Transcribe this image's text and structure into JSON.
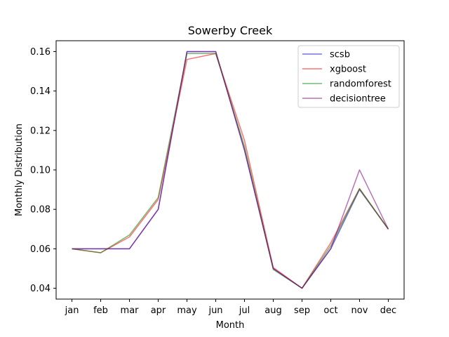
{
  "chart_data": {
    "type": "line",
    "title": "Sowerby Creek",
    "xlabel": "Month",
    "ylabel": "Monthly Distribution",
    "categories": [
      "jan",
      "feb",
      "mar",
      "apr",
      "may",
      "jun",
      "jul",
      "aug",
      "sep",
      "oct",
      "nov",
      "dec"
    ],
    "ylim": [
      0.0345,
      0.1655
    ],
    "yticks": [
      "0.04",
      "0.06",
      "0.08",
      "0.10",
      "0.12",
      "0.14",
      "0.16"
    ],
    "legend_position": "top-right",
    "grid": false,
    "series": [
      {
        "name": "scsb",
        "color": "#0000cc",
        "values": [
          0.06,
          0.06,
          0.06,
          0.08,
          0.16,
          0.16,
          0.11,
          0.05,
          0.04,
          0.06,
          0.09,
          0.07
        ]
      },
      {
        "name": "xgboost",
        "color": "#ff0000",
        "values": [
          0.06,
          0.058,
          0.066,
          0.085,
          0.156,
          0.159,
          0.115,
          0.0505,
          0.04,
          0.063,
          0.0905,
          0.07
        ]
      },
      {
        "name": "randomforest",
        "color": "#008000",
        "values": [
          0.06,
          0.058,
          0.067,
          0.086,
          0.159,
          0.159,
          0.112,
          0.0495,
          0.04,
          0.0615,
          0.0905,
          0.07
        ]
      },
      {
        "name": "decisiontree",
        "color": "#800080",
        "values": [
          0.06,
          0.06,
          0.06,
          0.08,
          0.16,
          0.16,
          0.11,
          0.05,
          0.04,
          0.06,
          0.1,
          0.07
        ]
      }
    ]
  }
}
